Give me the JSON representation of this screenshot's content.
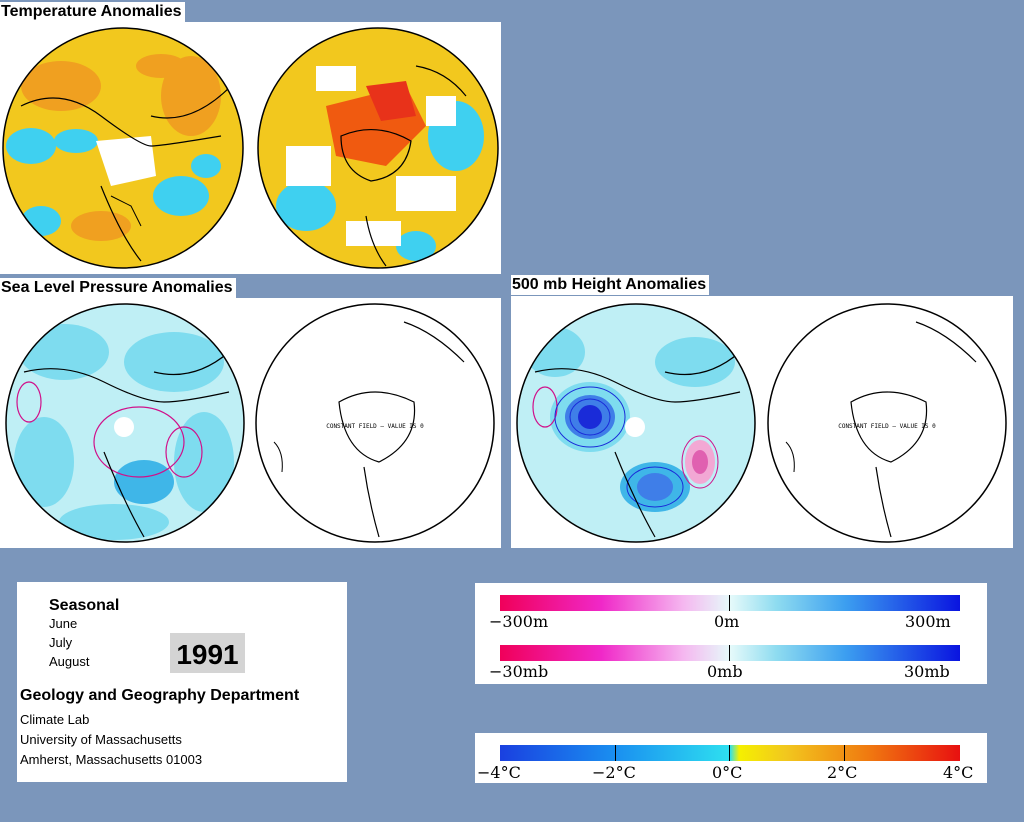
{
  "titles": {
    "temperature": "Temperature Anomalies",
    "slp": "Sea Level Pressure Anomalies",
    "height500": "500 mb Height Anomalies"
  },
  "constant_field_text": "CONSTANT FIELD — VALUE IS 0",
  "info": {
    "heading": "Seasonal",
    "months": [
      "June",
      "July",
      "August"
    ],
    "year": "1991",
    "department": "Geology and Geography Department",
    "lab": "Climate Lab",
    "university": "University of Massachusetts",
    "city": "Amherst, Massachusetts 01003"
  },
  "scales": {
    "height_labels": {
      "left": "−300m",
      "mid": "0m",
      "right": "300m"
    },
    "pressure_labels": {
      "left": "−30mb",
      "mid": "0mb",
      "right": "30mb"
    },
    "temperature_labels": [
      "−4°C",
      "−2°C",
      "0°C",
      "2°C",
      "4°C"
    ]
  },
  "colors": {
    "background": "#7b96bb",
    "anomaly_warm": "#f05a10",
    "anomaly_yellow": "#f2c81e",
    "anomaly_cool": "#3fd0f0",
    "anomaly_pale": "#bfeff5",
    "negative_contour": "#d0108a",
    "positive_contour": "#1a2bd8"
  }
}
